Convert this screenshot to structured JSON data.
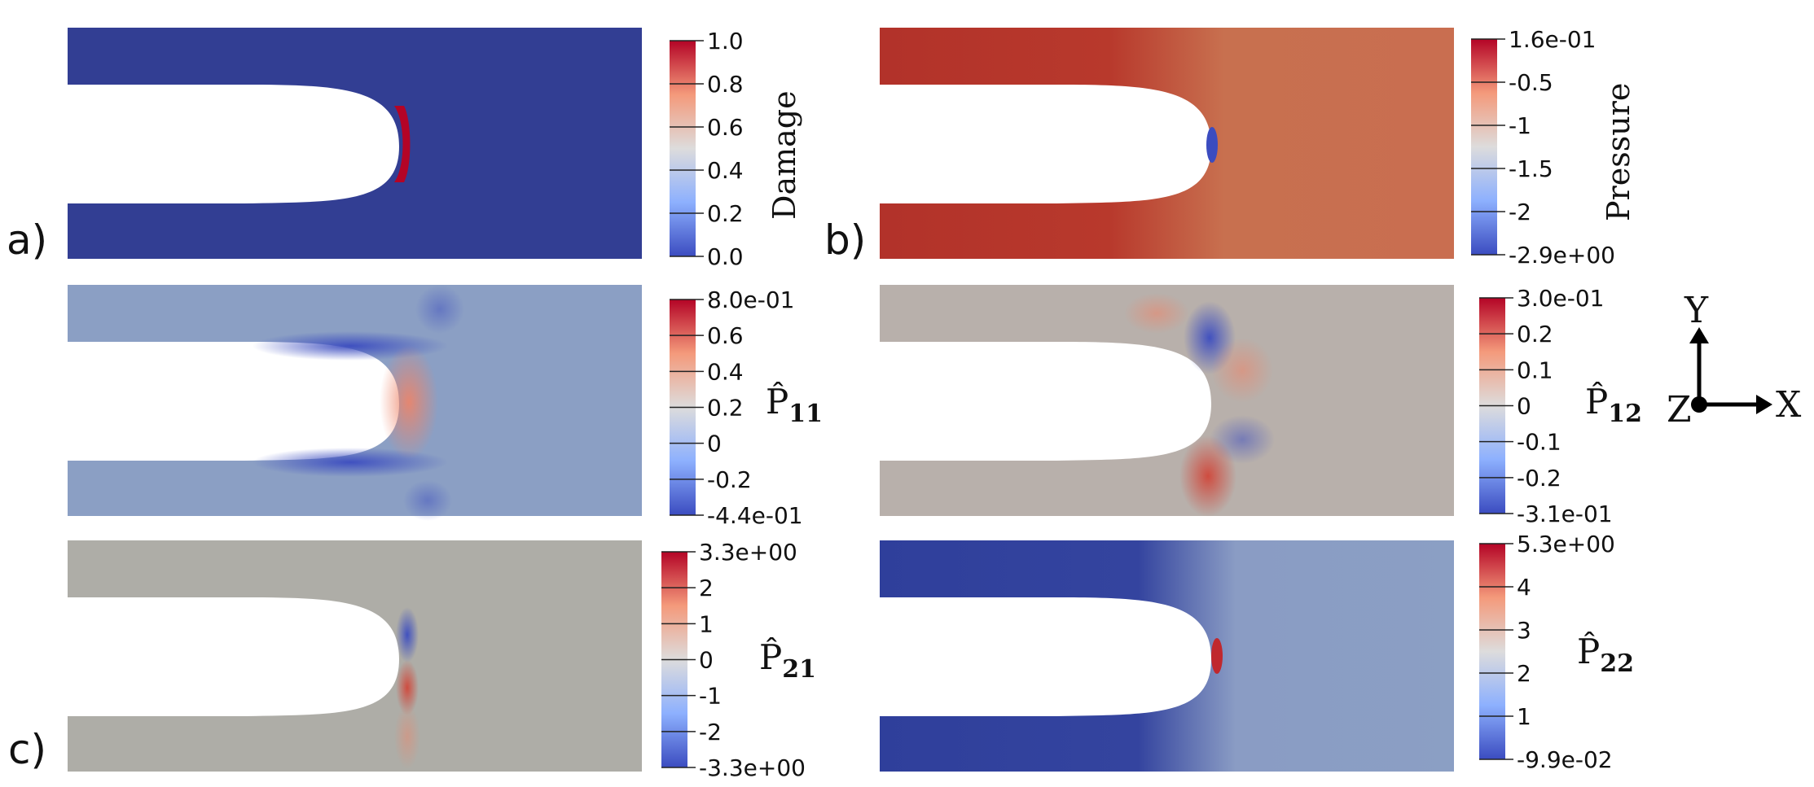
{
  "panel_labels": [
    "a)",
    "b)",
    "c)"
  ],
  "colormap": {
    "low": "#3b4cc0",
    "mid": "#dddcdc",
    "high": "#b40426"
  },
  "panels": [
    {
      "id": "damage",
      "title": "Damage",
      "ticks": [
        "1.0",
        "0.8",
        "0.6",
        "0.4",
        "0.2",
        "0.0"
      ]
    },
    {
      "id": "pressure",
      "title": "Pressure",
      "ticks": [
        "1.6e-01",
        "-0.5",
        "-1",
        "-1.5",
        "-2",
        "-2.9e+00"
      ]
    },
    {
      "id": "p11",
      "symbol": "P̂",
      "subscript": "11",
      "ticks": [
        "8.0e-01",
        "0.6",
        "0.4",
        "0.2",
        "0",
        "-0.2",
        "-4.4e-01"
      ]
    },
    {
      "id": "p12",
      "symbol": "P̂",
      "subscript": "12",
      "ticks": [
        "3.0e-01",
        "0.2",
        "0.1",
        "0",
        "-0.1",
        "-0.2",
        "-3.1e-01"
      ]
    },
    {
      "id": "p21",
      "symbol": "P̂",
      "subscript": "21",
      "ticks": [
        "3.3e+00",
        "2",
        "1",
        "0",
        "-1",
        "-2",
        "-3.3e+00"
      ]
    },
    {
      "id": "p22",
      "symbol": "P̂",
      "subscript": "22",
      "ticks": [
        "5.3e+00",
        "4",
        "3",
        "2",
        "1",
        "-9.9e-02"
      ]
    }
  ],
  "axes": {
    "x": "X",
    "y": "Y",
    "z": "Z"
  }
}
